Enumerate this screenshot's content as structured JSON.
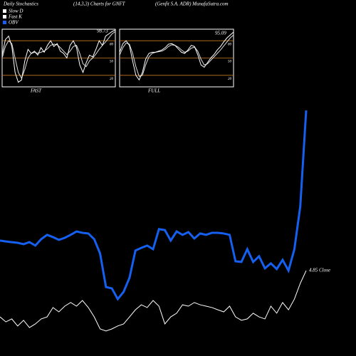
{
  "header": {
    "title": "Daily Stochastics",
    "subtitle": "(14,3,3) Charts for GNFT",
    "source": "(Genfit S.A. ADR) MunafaSutra.com"
  },
  "chart_data": [
    {
      "type": "line",
      "label": "FAST",
      "ylim": [
        0,
        100
      ],
      "yticks": [
        20,
        50,
        80
      ],
      "level_color": "#c87a1e",
      "series": [
        {
          "name": "Fast K",
          "color": "#ffffff",
          "values": [
            55,
            82,
            88,
            70,
            25,
            8,
            12,
            45,
            65,
            58,
            62,
            55,
            68,
            60,
            72,
            80,
            70,
            75,
            62,
            58,
            50,
            72,
            80,
            68,
            38,
            25,
            42,
            55,
            52,
            65,
            80,
            72,
            88,
            92,
            96,
            98.73
          ]
        },
        {
          "name": "Slow D",
          "color": "#dddddd",
          "values": [
            50,
            70,
            80,
            75,
            50,
            25,
            15,
            30,
            50,
            58,
            60,
            58,
            60,
            62,
            66,
            72,
            74,
            73,
            68,
            62,
            56,
            62,
            70,
            72,
            58,
            40,
            35,
            45,
            50,
            57,
            65,
            72,
            78,
            85,
            92,
            96
          ]
        }
      ]
    },
    {
      "type": "line",
      "label": "FULL",
      "ylim": [
        0,
        100
      ],
      "yticks": [
        20,
        50,
        80
      ],
      "level_color": "#c87a1e",
      "series": [
        {
          "name": "Fast K",
          "color": "#ffffff",
          "values": [
            60,
            75,
            80,
            72,
            45,
            20,
            12,
            25,
            48,
            58,
            60,
            60,
            62,
            64,
            68,
            74,
            75,
            72,
            66,
            60,
            58,
            64,
            72,
            70,
            56,
            38,
            34,
            42,
            50,
            56,
            64,
            70,
            78,
            85,
            90,
            95.09
          ]
        },
        {
          "name": "Slow D",
          "color": "#dddddd",
          "values": [
            55,
            68,
            76,
            74,
            58,
            35,
            18,
            20,
            38,
            52,
            58,
            60,
            61,
            62,
            65,
            70,
            73,
            72,
            69,
            64,
            60,
            62,
            67,
            69,
            62,
            48,
            38,
            40,
            46,
            52,
            58,
            64,
            71,
            78,
            85,
            90
          ]
        }
      ]
    },
    {
      "type": "line",
      "ylim": [
        0,
        100
      ],
      "annotation": "4.85 Close",
      "series": [
        {
          "name": "OBV",
          "color": "#1560f0",
          "values": [
            41.3,
            40.9,
            40.6,
            40.3,
            39.7,
            40.6,
            39.1,
            41.9,
            43.8,
            42.8,
            41.6,
            42.5,
            43.8,
            45.3,
            44.7,
            44.4,
            41.9,
            35.6,
            20.9,
            20.3,
            15.6,
            18.8,
            25,
            36.9,
            38.1,
            39.1,
            37.5,
            46.3,
            45.9,
            41.3,
            45.3,
            43.8,
            45,
            42.2,
            44.4,
            43.8,
            44.7,
            44.7,
            44.4,
            43.8,
            32.2,
            31.9,
            37.5,
            31.9,
            34.4,
            29.1,
            31.3,
            28.8,
            32.8,
            28.1,
            37.5,
            56.3,
            98.4
          ]
        },
        {
          "color": "#ffffff",
          "values": [
            7.8,
            5.6,
            6.9,
            3.8,
            6.3,
            3.1,
            4.7,
            6.9,
            7.8,
            11.9,
            10,
            12.5,
            14.1,
            12.5,
            15,
            11.9,
            7.8,
            2.5,
            1.6,
            2.5,
            3.8,
            4.7,
            7.8,
            10.9,
            13.1,
            11.9,
            15,
            12.5,
            4.7,
            7.8,
            9.4,
            13.1,
            12.5,
            14.1,
            13.1,
            12.5,
            11.9,
            10.9,
            10,
            12.5,
            7.8,
            6.3,
            6.9,
            9.4,
            7.8,
            6.9,
            12.5,
            9.4,
            14.1,
            10.9,
            15.6,
            22.5,
            28.1
          ]
        }
      ]
    }
  ]
}
